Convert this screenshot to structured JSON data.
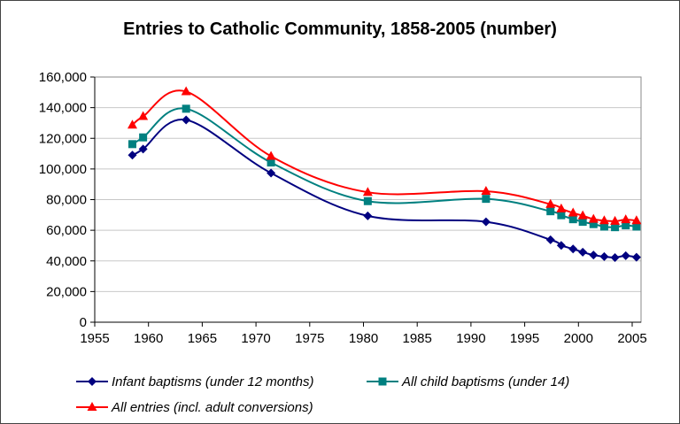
{
  "chart_data": {
    "type": "line",
    "title": "Entries to Catholic Community, 1858-2005 (number)",
    "xlabel": "",
    "ylabel": "",
    "xlim": [
      1955,
      2005
    ],
    "ylim": [
      0,
      160000
    ],
    "x_ticks": [
      "1955",
      "1960",
      "1965",
      "1970",
      "1975",
      "1980",
      "1985",
      "1990",
      "1995",
      "2000",
      "2005"
    ],
    "y_ticks": [
      "0",
      "20,000",
      "40,000",
      "60,000",
      "80,000",
      "100,000",
      "120,000",
      "140,000",
      "160,000"
    ],
    "grid": "horizontal",
    "legend_position": "bottom",
    "x": [
      1958.5,
      1959.5,
      1963.5,
      1971.4,
      1980.4,
      1991.4,
      1997.4,
      1998.4,
      1999.5,
      2000.4,
      2001.4,
      2002.4,
      2003.4,
      2004.4,
      2005.4
    ],
    "series": [
      {
        "name": "Infant baptisms (under 12 months)",
        "color": "#000080",
        "marker": "diamond",
        "values": [
          109000,
          113000,
          132000,
          97300,
          69400,
          65500,
          53800,
          50100,
          47800,
          45700,
          43800,
          42800,
          42200,
          43400,
          42400
        ]
      },
      {
        "name": "All child baptisms (under 14)",
        "color": "#008080",
        "marker": "square",
        "values": [
          116200,
          120600,
          139300,
          104200,
          79000,
          80500,
          72400,
          69800,
          67200,
          65500,
          64000,
          62400,
          62000,
          63200,
          62400
        ]
      },
      {
        "name": "All entries (incl. adult conversions)",
        "color": "#ff0000",
        "marker": "triangle",
        "values": [
          128700,
          134300,
          150500,
          108300,
          84800,
          85500,
          77000,
          74000,
          71300,
          69500,
          67200,
          66300,
          65900,
          66900,
          66300
        ]
      }
    ]
  }
}
